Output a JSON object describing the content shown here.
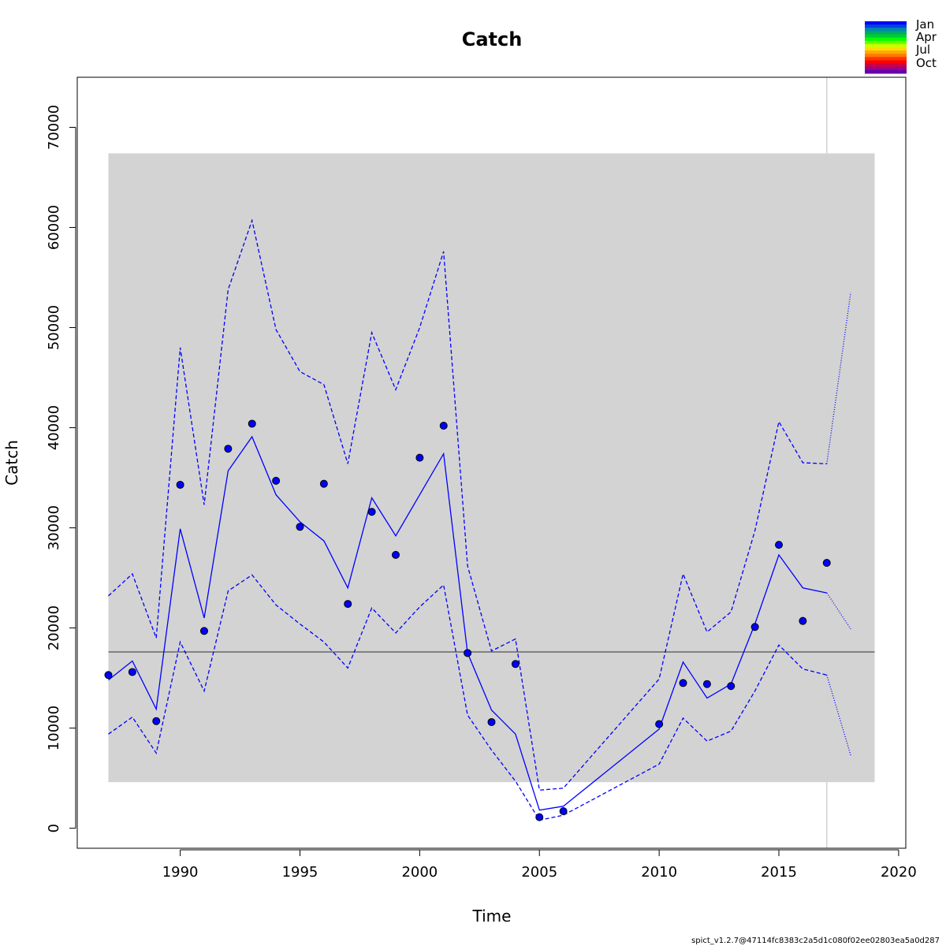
{
  "chart_data": {
    "type": "line",
    "title": "Catch",
    "xlabel": "Time",
    "ylabel": "Catch",
    "xlim": [
      1985.7,
      2020.3
    ],
    "ylim": [
      -2000,
      75000
    ],
    "xticks": [
      1990,
      1995,
      2000,
      2005,
      2010,
      2015,
      2020
    ],
    "xtick_labels": [
      "1990",
      "1995",
      "2000",
      "2005",
      "2010",
      "2015",
      "2020"
    ],
    "yticks": [
      0,
      10000,
      20000,
      30000,
      40000,
      50000,
      60000,
      70000
    ],
    "ytick_labels": [
      "0",
      "10000",
      "20000",
      "30000",
      "40000",
      "50000",
      "60000",
      "70000"
    ],
    "grid": false,
    "shaded_band": {
      "x0": 1987,
      "x1": 2019,
      "y0": 4600,
      "y1": 67400,
      "color": "#d3d3d3"
    },
    "reference_line": {
      "y": 17600,
      "color": "#666666"
    },
    "vertical_line": {
      "x": 2017,
      "color": "#d3d3d3"
    },
    "observed": {
      "x": [
        1987,
        1988,
        1989,
        1990,
        1991,
        1992,
        1993,
        1994,
        1995,
        1996,
        1997,
        1998,
        1999,
        2000,
        2001,
        2002,
        2003,
        2004,
        2005,
        2006,
        2010,
        2011,
        2012,
        2013,
        2014,
        2015,
        2016,
        2017
      ],
      "y": [
        15300,
        15600,
        10700,
        34300,
        19700,
        37900,
        40400,
        34700,
        30100,
        34400,
        22400,
        31600,
        27300,
        37000,
        40200,
        17500,
        10600,
        16400,
        1100,
        1700,
        10400,
        14500,
        14400,
        14200,
        20100,
        28300,
        20700,
        26500
      ],
      "color": "#0000ff"
    },
    "series": [
      {
        "style": "solid",
        "color": "#0000ff",
        "x": [
          1987,
          1988,
          1989,
          1990,
          1991,
          1992,
          1993,
          1994,
          1995,
          1996,
          1997,
          1998,
          1999,
          2000,
          2001,
          2002,
          2003,
          2004,
          2005,
          2006,
          2010,
          2011,
          2012,
          2013,
          2014,
          2015,
          2016,
          2017
        ],
        "y": [
          14800,
          16700,
          11900,
          29900,
          21000,
          35700,
          39100,
          33300,
          30600,
          28700,
          24000,
          33000,
          29200,
          33300,
          37400,
          17500,
          11800,
          9400,
          1800,
          2200,
          9900,
          16600,
          13000,
          14400,
          20400,
          27300,
          24000,
          23500
        ]
      },
      {
        "style": "dashed",
        "color": "#0000ff",
        "x": [
          1987,
          1988,
          1989,
          1990,
          1991,
          1992,
          1993,
          1994,
          1995,
          1996,
          1997,
          1998,
          1999,
          2000,
          2001,
          2002,
          2003,
          2004,
          2005,
          2006,
          2010,
          2011,
          2012,
          2013,
          2014,
          2015,
          2016,
          2017
        ],
        "y": [
          23200,
          25400,
          19000,
          48000,
          32300,
          53800,
          60700,
          49800,
          45600,
          44300,
          36400,
          49500,
          43800,
          50000,
          57600,
          26200,
          17700,
          18900,
          3800,
          4000,
          14900,
          25400,
          19600,
          21600,
          29700,
          40600,
          36500,
          36400
        ]
      },
      {
        "style": "dashed",
        "color": "#0000ff",
        "x": [
          1987,
          1988,
          1989,
          1990,
          1991,
          1992,
          1993,
          1994,
          1995,
          1996,
          1997,
          1998,
          1999,
          2000,
          2001,
          2002,
          2003,
          2004,
          2005,
          2006,
          2010,
          2011,
          2012,
          2013,
          2014,
          2015,
          2016,
          2017
        ],
        "y": [
          9400,
          11100,
          7500,
          18600,
          13700,
          23700,
          25300,
          22300,
          20400,
          18600,
          16000,
          22000,
          19500,
          22100,
          24300,
          11300,
          7800,
          4700,
          800,
          1300,
          6400,
          11000,
          8700,
          9700,
          13700,
          18300,
          15900,
          15300
        ]
      },
      {
        "style": "dotted",
        "color": "#0000ff",
        "x": [
          2017,
          2018
        ],
        "y": [
          23500,
          19900
        ]
      },
      {
        "style": "dotted",
        "color": "#0000ff",
        "x": [
          2017,
          2018
        ],
        "y": [
          36400,
          53500
        ]
      },
      {
        "style": "dotted",
        "color": "#0000ff",
        "x": [
          2017,
          2018
        ],
        "y": [
          15300,
          7300
        ]
      }
    ],
    "legend": {
      "placement": "top-right",
      "labels": [
        "Jan",
        "Apr",
        "Jul",
        "Oct"
      ],
      "colors": [
        "#0000ff",
        "#0044dd",
        "#0088aa",
        "#00aa66",
        "#00cc33",
        "#00ff00",
        "#66ff00",
        "#ccff00",
        "#ffdd00",
        "#ffaa00",
        "#ff7700",
        "#ff3300",
        "#ff0000",
        "#cc0044",
        "#990088",
        "#6600aa"
      ]
    }
  },
  "footer": "spict_v1.2.7@47114fc8383c2a5d1c080f02ee02803ea5a0d287"
}
